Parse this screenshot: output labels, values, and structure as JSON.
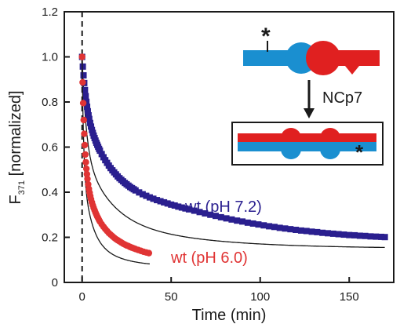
{
  "chart_data": {
    "type": "scatter",
    "xlabel": "Time (min)",
    "ylabel_main": "F",
    "ylabel_sub": "371",
    "ylabel_rest": " [normalized]",
    "xlim": [
      -10,
      175
    ],
    "ylim": [
      0,
      1.2
    ],
    "xticks": [
      0,
      50,
      100,
      150
    ],
    "yticks": [
      0,
      0.2,
      0.4,
      0.6,
      0.8,
      1.0,
      1.2
    ],
    "ytick_labels": [
      "0",
      "0.2",
      "0.4",
      "0.6",
      "0.8",
      "1.0",
      "1.2"
    ],
    "vline_x": 0,
    "series": [
      {
        "name": "wt (pH 7.2)",
        "marker": "square",
        "color": "#2a1f8f",
        "fit": {
          "a1": 0.4,
          "t1": 2.2,
          "a2": 0.3,
          "t2": 14,
          "a3": 0.15,
          "t3": 50,
          "c": 0.15,
          "x_end": 170
        },
        "x": [
          0.0,
          0.4,
          0.8,
          1.2,
          1.6,
          2.0,
          2.4,
          2.8,
          3.2,
          3.6,
          4.0,
          4.5,
          5.0,
          5.5,
          6.0,
          6.5,
          7.0,
          7.5,
          8.0,
          8.5,
          9.0,
          9.5,
          10.0,
          11.0,
          12.0,
          13.0,
          14.0,
          15.0,
          16.0,
          17.0,
          18.0,
          19.0,
          20.0,
          21.0,
          22.0,
          23.0,
          24.0,
          25.0,
          26.0,
          27.0,
          28.0,
          29.0,
          30.0,
          32.0,
          34.0,
          36.0,
          38.0,
          40.0,
          42.0,
          44.0,
          46.0,
          48.0,
          50.0,
          52.0,
          54.0,
          56.0,
          58.0,
          60.0,
          63.0,
          66.0,
          69.0,
          72.0,
          75.0,
          78.0,
          81.0,
          84.0,
          87.0,
          90.0,
          93.0,
          96.0,
          99.0,
          102.0,
          105.0,
          108.0,
          111.0,
          114.0,
          117.0,
          120.0,
          123.0,
          126.0,
          129.0,
          132.0,
          135.0,
          138.0,
          141.0,
          144.0,
          147.0,
          150.0,
          153.0,
          156.0,
          159.0,
          162.0,
          165.0,
          168.0,
          170.0
        ],
        "y": [
          1.0,
          0.957,
          0.918,
          0.884,
          0.853,
          0.826,
          0.801,
          0.779,
          0.759,
          0.741,
          0.725,
          0.707,
          0.691,
          0.676,
          0.663,
          0.651,
          0.64,
          0.629,
          0.619,
          0.61,
          0.601,
          0.592,
          0.584,
          0.569,
          0.555,
          0.542,
          0.53,
          0.518,
          0.507,
          0.497,
          0.488,
          0.479,
          0.47,
          0.462,
          0.455,
          0.448,
          0.441,
          0.435,
          0.429,
          0.423,
          0.418,
          0.413,
          0.408,
          0.399,
          0.391,
          0.384,
          0.377,
          0.371,
          0.365,
          0.36,
          0.355,
          0.35,
          0.345,
          0.341,
          0.336,
          0.332,
          0.328,
          0.324,
          0.318,
          0.312,
          0.306,
          0.3,
          0.295,
          0.289,
          0.284,
          0.279,
          0.274,
          0.27,
          0.265,
          0.261,
          0.257,
          0.253,
          0.249,
          0.246,
          0.242,
          0.239,
          0.236,
          0.233,
          0.23,
          0.228,
          0.225,
          0.223,
          0.22,
          0.218,
          0.216,
          0.214,
          0.212,
          0.21,
          0.209,
          0.207,
          0.206,
          0.204,
          0.203,
          0.202,
          0.201
        ]
      },
      {
        "name": "wt (pH 6.0)",
        "marker": "circle",
        "color": "#e03434",
        "fit": {
          "a1": 0.48,
          "t1": 0.8,
          "a2": 0.3,
          "t2": 4.5,
          "a3": 0.15,
          "t3": 15,
          "c": 0.07,
          "x_end": 38
        },
        "x": [
          0.0,
          0.3,
          0.6,
          0.9,
          1.2,
          1.5,
          1.8,
          2.1,
          2.4,
          2.7,
          3.0,
          3.4,
          3.8,
          4.2,
          4.6,
          5.0,
          5.5,
          6.0,
          6.5,
          7.0,
          7.5,
          8.0,
          8.5,
          9.0,
          9.5,
          10.0,
          11.0,
          12.0,
          13.0,
          14.0,
          15.0,
          16.0,
          17.0,
          18.0,
          19.0,
          20.0,
          21.0,
          22.0,
          23.0,
          24.0,
          25.0,
          26.0,
          27.0,
          28.0,
          29.0,
          30.0,
          31.5,
          33.0,
          34.5,
          36.0,
          37.5
        ],
        "y": [
          1.0,
          0.887,
          0.795,
          0.72,
          0.659,
          0.609,
          0.567,
          0.533,
          0.504,
          0.48,
          0.459,
          0.435,
          0.415,
          0.398,
          0.383,
          0.369,
          0.355,
          0.342,
          0.33,
          0.32,
          0.31,
          0.301,
          0.292,
          0.285,
          0.277,
          0.27,
          0.258,
          0.247,
          0.237,
          0.228,
          0.219,
          0.212,
          0.205,
          0.198,
          0.192,
          0.187,
          0.182,
          0.177,
          0.172,
          0.168,
          0.164,
          0.161,
          0.157,
          0.154,
          0.151,
          0.148,
          0.144,
          0.14,
          0.136,
          0.133,
          0.13
        ]
      }
    ],
    "annotations": [
      {
        "text": "wt (pH 7.2)",
        "color": "#2a1f8f"
      },
      {
        "text": "wt (pH 6.0)",
        "color": "#e03434"
      }
    ]
  },
  "schematic": {
    "label": "NCp7",
    "star": "*",
    "blue": "#1a8fd0",
    "red": "#e02020"
  }
}
